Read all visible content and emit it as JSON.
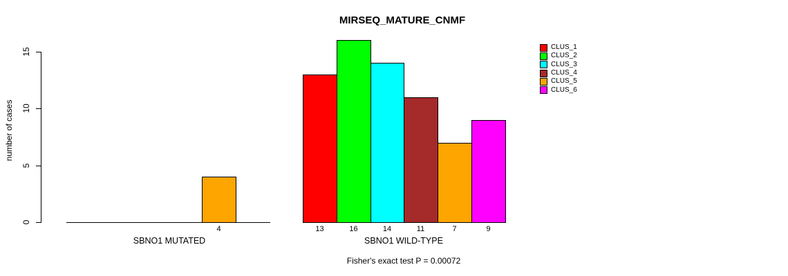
{
  "chart_data": {
    "type": "bar",
    "title": "MIRSEQ_MATURE_CNMF",
    "ylabel": "number of cases",
    "xlabel": "",
    "ylim": [
      0,
      16.5
    ],
    "yticks": [
      0,
      5,
      10,
      15
    ],
    "grid": false,
    "legend_position": "top-right",
    "series_labels": [
      "CLUS_1",
      "CLUS_2",
      "CLUS_3",
      "CLUS_4",
      "CLUS_5",
      "CLUS_6"
    ],
    "series_colors": [
      "#FF0000",
      "#00FF00",
      "#00FFFF",
      "#A52A2A",
      "#FFA500",
      "#FF00FF"
    ],
    "groups": [
      {
        "label": "SBNO1 MUTATED",
        "values": [
          0,
          0,
          0,
          0,
          4,
          0
        ]
      },
      {
        "label": "SBNO1 WILD-TYPE",
        "values": [
          13,
          16,
          14,
          11,
          7,
          9
        ]
      }
    ],
    "bar_value_label_rule": "value shown under each nonzero bar",
    "footnote": "Fisher's exact test P = 0.00072",
    "axis_color": "#000000",
    "background": "#FFFFFF"
  }
}
